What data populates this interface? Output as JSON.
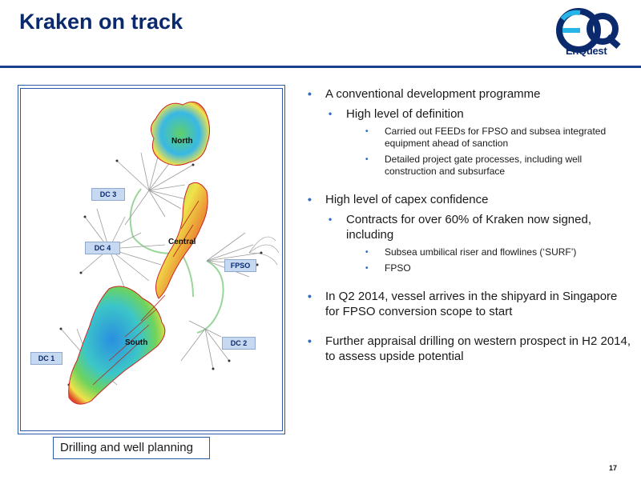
{
  "header": {
    "title": "Kraken on track"
  },
  "logo": {
    "monogram": "eQ",
    "wordmark": "EnQuest",
    "colors": {
      "navy": "#0b2a6e",
      "cyan": "#27b4e6"
    }
  },
  "map": {
    "labels": {
      "north": "North",
      "central": "Central",
      "south": "South",
      "dc1": "DC 1",
      "dc2": "DC 2",
      "dc3": "DC 3",
      "dc4": "DC 4",
      "fpso": "FPSO"
    }
  },
  "caption": "Drilling and well planning",
  "bullets": [
    {
      "level": 1,
      "text": "A conventional development programme"
    },
    {
      "level": 2,
      "text": "High level of definition"
    },
    {
      "level": 3,
      "text": "Carried out FEEDs for FPSO and subsea integrated equipment ahead of sanction"
    },
    {
      "level": 3,
      "text": "Detailed project gate processes, including well construction and subsurface"
    },
    {
      "level": 1,
      "text": "High level of capex confidence"
    },
    {
      "level": 2,
      "text": "Contracts for over 60% of Kraken now signed, including"
    },
    {
      "level": 3,
      "text": "Subsea umbilical riser and flowlines (‘SURF’)"
    },
    {
      "level": 3,
      "text": "FPSO"
    },
    {
      "level": 1,
      "text": "In Q2 2014, vessel arrives in the shipyard in Singapore for FPSO conversion scope to start"
    },
    {
      "level": 1,
      "text": "Further appraisal drilling on western prospect in H2 2014, to assess upside potential"
    }
  ],
  "footer": {
    "page_number": "17"
  }
}
